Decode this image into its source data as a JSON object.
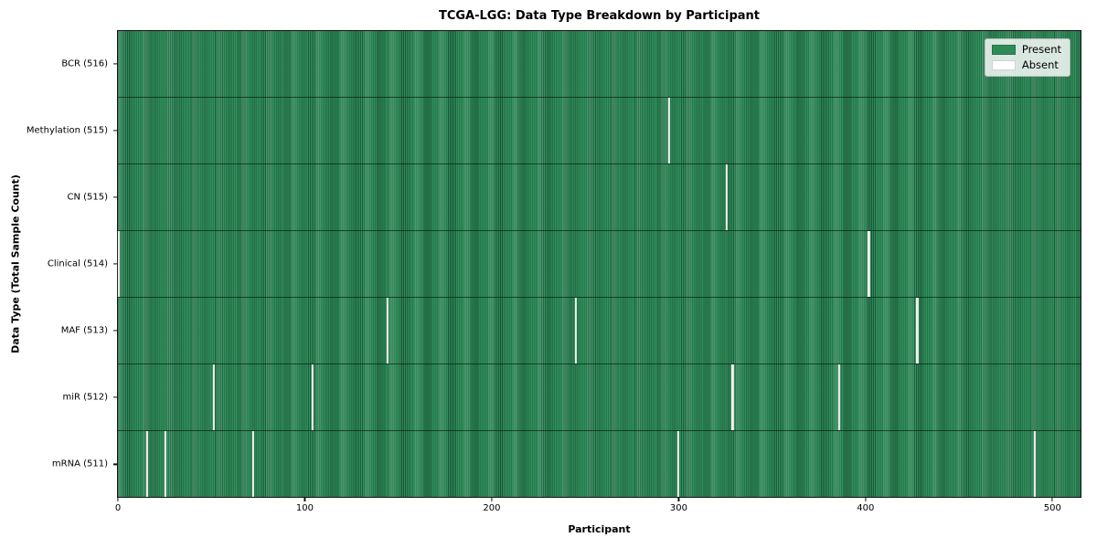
{
  "colors": {
    "present": "#2e8b57",
    "absent": "#ffffff",
    "bar_edge": "#1d5e3b",
    "figure_background": "#ffffff"
  },
  "chart_data": {
    "type": "heatmap",
    "title": "TCGA-LGG: Data Type Breakdown by Participant",
    "xlabel": "Participant",
    "ylabel": "Data Type (Total Sample Count)",
    "n_participants": 516,
    "xlim": [
      -0.5,
      515.5
    ],
    "x_ticks": [
      0,
      100,
      200,
      300,
      400,
      500
    ],
    "grid": false,
    "legend_position": "upper right",
    "legend": [
      "Present",
      "Absent"
    ],
    "rows": [
      {
        "label": "BCR (516)",
        "present_count": 516,
        "absent_participants": []
      },
      {
        "label": "Methylation (515)",
        "present_count": 515,
        "absent_participants": [
          295
        ]
      },
      {
        "label": "CN (515)",
        "present_count": 515,
        "absent_participants": [
          326
        ]
      },
      {
        "label": "Clinical (514)",
        "present_count": 514,
        "absent_participants": [
          0,
          402
        ]
      },
      {
        "label": "MAF (513)",
        "present_count": 513,
        "absent_participants": [
          144,
          245,
          428
        ]
      },
      {
        "label": "miR (512)",
        "present_count": 512,
        "absent_participants": [
          51,
          104,
          329,
          386
        ]
      },
      {
        "label": "mRNA (511)",
        "present_count": 511,
        "absent_participants": [
          15,
          25,
          72,
          300,
          491
        ]
      }
    ]
  }
}
